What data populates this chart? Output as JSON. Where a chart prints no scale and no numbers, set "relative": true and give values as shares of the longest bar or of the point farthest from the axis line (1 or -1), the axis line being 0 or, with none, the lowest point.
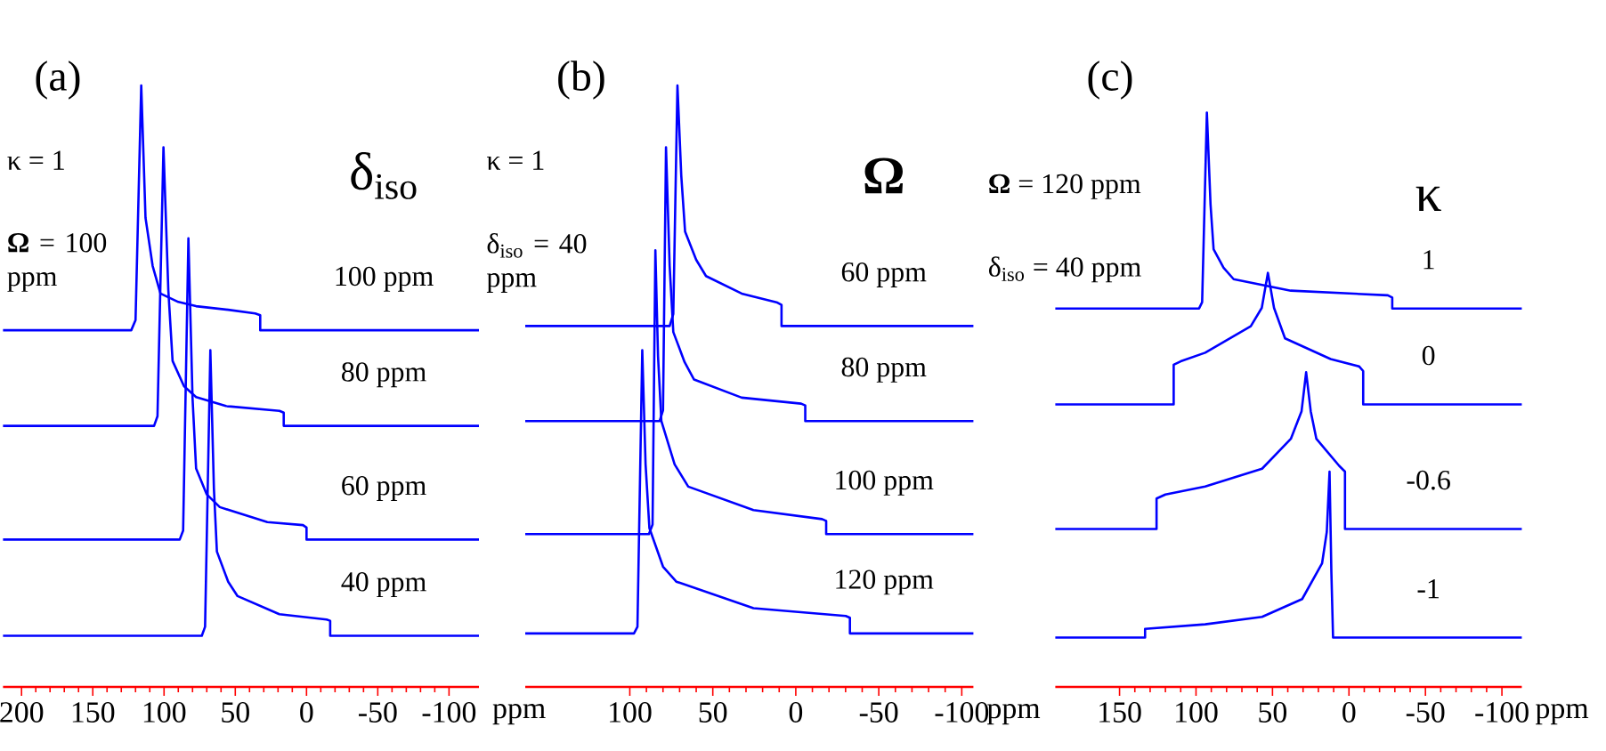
{
  "chart_data": [
    {
      "type": "line",
      "title": "(a)",
      "xlabel": "ppm",
      "relative": true,
      "xlim": [
        213,
        -121
      ],
      "xticks": [
        200,
        150,
        100,
        50,
        0,
        -50,
        -100
      ],
      "legend_title": "δ$_{iso}$",
      "annotations": [
        "κ = 1",
        "**Ω** = 100 ppm"
      ],
      "series": [
        {
          "name": "100 ppm",
          "color": "#0000ff",
          "x": [
            213,
            123,
            120,
            116,
            113,
            108,
            102.5,
            90,
            77.5,
            55,
            36,
            32.5,
            32.5,
            -121
          ],
          "values": [
            0.593,
            0.593,
            0.61,
            1.0,
            0.78,
            0.7,
            0.654,
            0.64,
            0.633,
            0.627,
            0.621,
            0.618,
            0.593,
            0.593
          ]
        },
        {
          "name": "80 ppm",
          "color": "#0000ff",
          "x": [
            213,
            107,
            104.6,
            100.4,
            97,
            94,
            86,
            77.5,
            56.6,
            19,
            16,
            16,
            -121
          ],
          "values": [
            0.434,
            0.434,
            0.45,
            0.897,
            0.66,
            0.542,
            0.5,
            0.482,
            0.467,
            0.459,
            0.456,
            0.434,
            0.434
          ]
        },
        {
          "name": "60 ppm",
          "color": "#0000ff",
          "x": [
            213,
            89,
            86.6,
            82.9,
            80,
            77.5,
            70,
            60.9,
            27.5,
            2.5,
            0,
            0,
            -121
          ],
          "values": [
            0.245,
            0.245,
            0.26,
            0.746,
            0.48,
            0.363,
            0.32,
            0.299,
            0.274,
            0.269,
            0.265,
            0.245,
            0.245
          ]
        },
        {
          "name": "40 ppm",
          "color": "#0000ff",
          "x": [
            213,
            73.5,
            71.2,
            67.5,
            65,
            62.9,
            55,
            48.4,
            19.1,
            -14.1,
            -16.6,
            -16.6,
            -121
          ],
          "values": [
            0.085,
            0.085,
            0.1,
            0.56,
            0.33,
            0.225,
            0.175,
            0.151,
            0.121,
            0.112,
            0.11,
            0.085,
            0.085
          ]
        }
      ]
    },
    {
      "type": "line",
      "title": "(b)",
      "xlabel": "ppm",
      "relative": true,
      "xlim": [
        163,
        -107
      ],
      "xticks": [
        100,
        50,
        0,
        -50,
        -100
      ],
      "legend_title": "**Ω**",
      "annotations": [
        "κ = 1",
        "δ$_{iso}$ = 40 ppm"
      ],
      "series": [
        {
          "name": "60 ppm",
          "color": "#0000ff",
          "x": [
            163,
            76,
            73.8,
            71.3,
            69,
            66.7,
            60,
            54.1,
            32.6,
            11.1,
            8.6,
            8.6,
            -107
          ],
          "values": [
            0.6,
            0.6,
            0.62,
            1.0,
            0.85,
            0.757,
            0.71,
            0.683,
            0.654,
            0.639,
            0.635,
            0.6,
            0.6
          ]
        },
        {
          "name": "80 ppm",
          "color": "#0000ff",
          "x": [
            163,
            82,
            80,
            78.2,
            76,
            73.8,
            67,
            61.3,
            32.6,
            -3.2,
            -5.7,
            -5.7,
            -107
          ],
          "values": [
            0.442,
            0.442,
            0.46,
            0.897,
            0.7,
            0.59,
            0.54,
            0.511,
            0.481,
            0.471,
            0.468,
            0.442,
            0.442
          ]
        },
        {
          "name": "100 ppm",
          "color": "#0000ff",
          "x": [
            163,
            88.5,
            86.3,
            84.6,
            83,
            81,
            73,
            64.8,
            25.5,
            -15.8,
            -18.3,
            -18.3,
            -107
          ],
          "values": [
            0.254,
            0.254,
            0.27,
            0.726,
            0.55,
            0.442,
            0.37,
            0.333,
            0.294,
            0.279,
            0.276,
            0.254,
            0.254
          ]
        },
        {
          "name": "120 ppm",
          "color": "#0000ff",
          "x": [
            163,
            97.5,
            95.4,
            92.5,
            90.5,
            88.2,
            80,
            72,
            25.5,
            -30.1,
            -32.6,
            -32.6,
            -107
          ],
          "values": [
            0.089,
            0.089,
            0.1,
            0.56,
            0.37,
            0.264,
            0.2,
            0.175,
            0.131,
            0.118,
            0.115,
            0.089,
            0.089
          ]
        }
      ]
    },
    {
      "type": "line",
      "title": "(c)",
      "xlabel": "ppm",
      "relative": true,
      "xlim": [
        192,
        -113
      ],
      "xticks": [
        150,
        100,
        50,
        0,
        -50,
        -100
      ],
      "legend_title": "κ",
      "annotations": [
        "**Ω** = 120 ppm",
        "δ$_{iso}$ = 40 ppm"
      ],
      "series": [
        {
          "name": "1",
          "color": "#0000ff",
          "x": [
            192,
            98,
            96,
            92.9,
            90.5,
            88.5,
            82,
            75.4,
            38,
            -25.4,
            -28.3,
            -28.3,
            -113
          ],
          "values": [
            0.659,
            0.659,
            0.67,
            1.0,
            0.84,
            0.762,
            0.73,
            0.71,
            0.69,
            0.682,
            0.678,
            0.659,
            0.659
          ]
        },
        {
          "name": "0",
          "color": "#0000ff",
          "x": [
            192,
            114.6,
            114.6,
            110,
            94,
            64.2,
            57,
            53,
            49,
            41.8,
            12,
            -6.7,
            -9.3,
            -9.3,
            -113
          ],
          "values": [
            0.492,
            0.492,
            0.561,
            0.567,
            0.582,
            0.628,
            0.66,
            0.721,
            0.66,
            0.607,
            0.571,
            0.558,
            0.55,
            0.492,
            0.492
          ]
        },
        {
          "name": "-0.6",
          "color": "#0000ff",
          "x": [
            192,
            125.8,
            125.8,
            120,
            94,
            56.8,
            38,
            31,
            28,
            25,
            21.3,
            6.4,
            2.6,
            2.6,
            -113
          ],
          "values": [
            0.275,
            0.275,
            0.328,
            0.335,
            0.349,
            0.38,
            0.432,
            0.48,
            0.548,
            0.48,
            0.432,
            0.385,
            0.375,
            0.275,
            0.275
          ]
        },
        {
          "name": "-1",
          "color": "#0000ff",
          "x": [
            192,
            133.3,
            133.3,
            94,
            56.8,
            30.6,
            17.6,
            14.5,
            12.7,
            11.5,
            10.4,
            -113
          ],
          "values": [
            0.086,
            0.086,
            0.101,
            0.109,
            0.122,
            0.153,
            0.215,
            0.27,
            0.375,
            0.2,
            0.086,
            0.086
          ]
        }
      ]
    }
  ]
}
